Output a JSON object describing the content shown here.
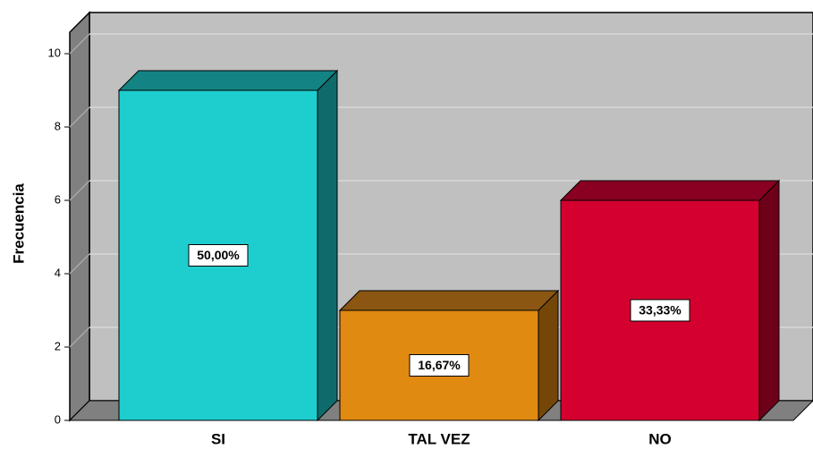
{
  "chart_data": {
    "type": "bar3d",
    "y_label": "Frecuencia",
    "categories": [
      "SI",
      "TAL VEZ",
      "NO"
    ],
    "values": [
      9,
      3,
      6
    ],
    "percentages": [
      50.0,
      16.67,
      33.33
    ],
    "percentage_labels": [
      "50,00%",
      "16,67%",
      "33,33%"
    ],
    "colors": [
      "#1ecece",
      "#e08a12",
      "#d30030"
    ],
    "top_colors": [
      "#138383",
      "#8a5612",
      "#8a0022"
    ],
    "side_colors": [
      "#0f6b6b",
      "#744709",
      "#6e0019"
    ],
    "ylim": [
      0,
      10
    ],
    "yticks": [
      0,
      2,
      4,
      6,
      8,
      10
    ],
    "grid": true
  }
}
